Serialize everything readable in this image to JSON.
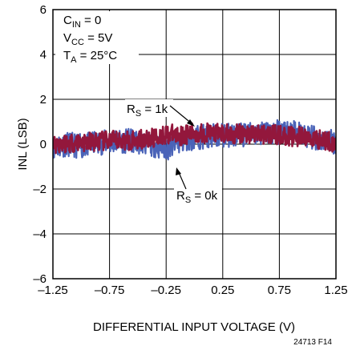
{
  "chart_data": {
    "type": "line",
    "title": "",
    "xlabel": "DIFFERENTIAL INPUT VOLTAGE (V)",
    "ylabel": "INL (LSB)",
    "xlim": [
      -1.25,
      1.25
    ],
    "ylim": [
      -6,
      6
    ],
    "x_ticks": [
      "–1.25",
      "–0.75",
      "–0.25",
      "0.25",
      "0.75",
      "1.25"
    ],
    "x_tick_values": [
      -1.25,
      -0.75,
      -0.25,
      0.25,
      0.75,
      1.25
    ],
    "y_ticks": [
      "6",
      "4",
      "2",
      "0",
      "–2",
      "–4",
      "–6"
    ],
    "y_tick_values": [
      6,
      4,
      2,
      0,
      -2,
      -4,
      -6
    ],
    "grid": true,
    "conditions": {
      "cin": {
        "main": "C",
        "sub": "IN",
        "rest": " = 0"
      },
      "vcc": {
        "main": "V",
        "sub": "CC",
        "rest": " = 5V"
      },
      "ta": {
        "main": "T",
        "sub": "A",
        "rest": " = 25°C"
      }
    },
    "annotations": [
      {
        "main": "R",
        "sub": "S",
        "rest": " = 1k",
        "x": -0.27,
        "y": 2.55,
        "arrow_to": [
          0.02,
          0.55
        ]
      },
      {
        "main": "R",
        "sub": "S",
        "rest": " = 0k",
        "x": -0.14,
        "y": -2.25,
        "arrow_to": [
          -0.24,
          -0.75
        ]
      }
    ],
    "series": [
      {
        "color": "#4a63b8",
        "x": [
          -1.25,
          -1.125,
          -1.0,
          -0.875,
          -0.75,
          -0.625,
          -0.5,
          -0.375,
          -0.25,
          -0.125,
          0.0,
          0.125,
          0.25,
          0.375,
          0.5,
          0.625,
          0.75,
          0.875,
          1.0,
          1.125,
          1.25
        ],
        "y": [
          -0.1,
          0.0,
          -0.1,
          0.05,
          0.1,
          0.15,
          0.1,
          0.0,
          -0.2,
          0.1,
          0.3,
          0.35,
          0.4,
          0.4,
          0.45,
          0.5,
          0.55,
          0.5,
          0.35,
          0.2,
          0.1
        ],
        "noise": 0.55
      },
      {
        "color": "#93173c",
        "x": [
          -1.25,
          -1.125,
          -1.0,
          -0.875,
          -0.75,
          -0.625,
          -0.5,
          -0.375,
          -0.25,
          -0.125,
          0.0,
          0.125,
          0.25,
          0.375,
          0.5,
          0.625,
          0.75,
          0.875,
          1.0,
          1.125,
          1.25
        ],
        "y": [
          0.0,
          0.05,
          0.1,
          0.1,
          0.15,
          0.15,
          0.2,
          0.25,
          0.45,
          0.4,
          0.5,
          0.5,
          0.45,
          0.45,
          0.45,
          0.45,
          0.4,
          0.35,
          0.3,
          0.2,
          0.05
        ],
        "noise": 0.45
      }
    ],
    "figure_id": "24713 F14"
  }
}
